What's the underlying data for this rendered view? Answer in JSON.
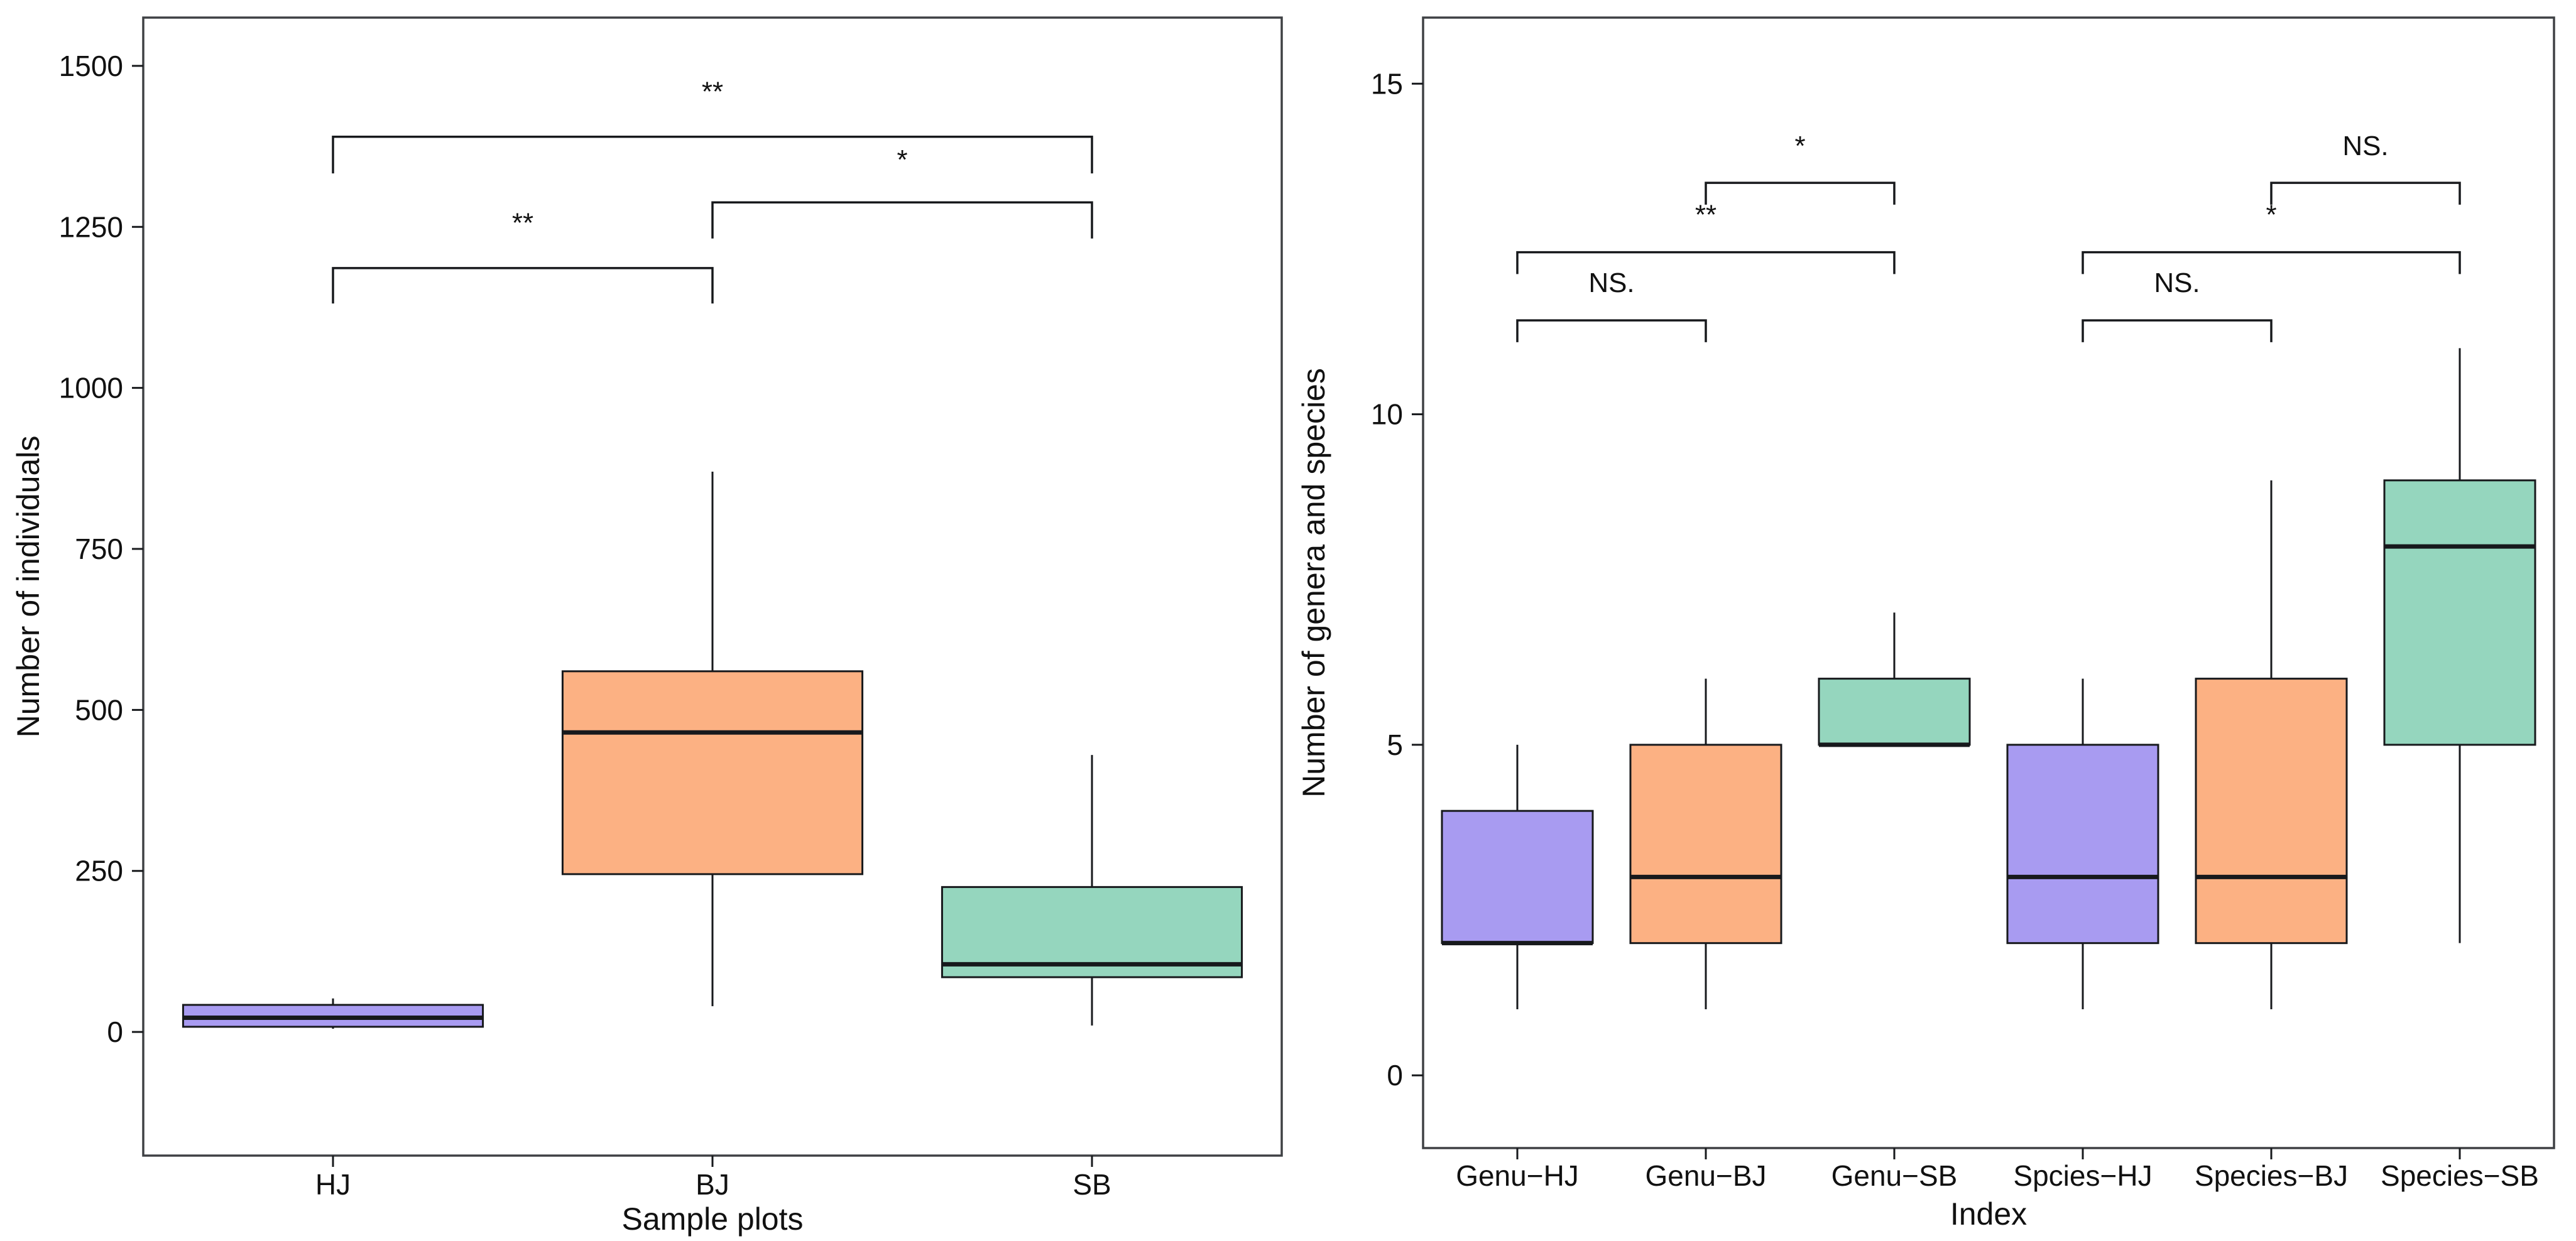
{
  "figure": {
    "background": "#ffffff",
    "line_color": "#17191c",
    "panel_border_color": "#3f4144",
    "palette": {
      "purple": "#A89BF1",
      "orange": "#FCB183",
      "green": "#95D6BE"
    }
  },
  "chart_data": [
    {
      "type": "boxplot",
      "panel": "left",
      "title": "",
      "xlabel": "Sample plots",
      "ylabel": "Number of individuals",
      "yticks": [
        0,
        250,
        500,
        750,
        1000,
        1250,
        1500
      ],
      "ydomain": [
        -192,
        1575
      ],
      "grid": false,
      "categories": [
        "HJ",
        "BJ",
        "SB"
      ],
      "boxes": [
        {
          "label": "HJ",
          "color_key": "purple",
          "whisker_low": 5,
          "q1": 8,
          "median": 22,
          "q3": 42,
          "whisker_high": 52
        },
        {
          "label": "BJ",
          "color_key": "orange",
          "whisker_low": 40,
          "q1": 245,
          "median": 465,
          "q3": 560,
          "whisker_high": 870
        },
        {
          "label": "SB",
          "color_key": "green",
          "whisker_low": 10,
          "q1": 85,
          "median": 105,
          "q3": 225,
          "whisker_high": 430
        }
      ],
      "significance": [
        {
          "from": "HJ",
          "to": "BJ",
          "label": "**",
          "bar_y": 1186,
          "leg": 55,
          "label_y": 1242
        },
        {
          "from": "HJ",
          "to": "SB",
          "label": "**",
          "bar_y": 1390,
          "leg": 57,
          "label_y": 1446
        },
        {
          "from": "BJ",
          "to": "SB",
          "label": "*",
          "bar_y": 1288,
          "leg": 56,
          "label_y": 1340
        }
      ]
    },
    {
      "type": "boxplot",
      "panel": "right",
      "title": "",
      "xlabel": "Index",
      "ylabel": "Number of genera and species",
      "yticks": [
        0,
        5,
        10,
        15
      ],
      "ydomain": [
        -1.1,
        16.0
      ],
      "grid": false,
      "categories": [
        "Genu−HJ",
        "Genu−BJ",
        "Genu−SB",
        "Spcies−HJ",
        "Species−BJ",
        "Species−SB"
      ],
      "boxes": [
        {
          "label": "Genu−HJ",
          "color_key": "purple",
          "whisker_low": 1,
          "q1": 2,
          "median": 2,
          "q3": 4,
          "whisker_high": 5
        },
        {
          "label": "Genu−BJ",
          "color_key": "orange",
          "whisker_low": 1,
          "q1": 2,
          "median": 3,
          "q3": 5,
          "whisker_high": 6
        },
        {
          "label": "Genu−SB",
          "color_key": "green",
          "whisker_low": 5,
          "q1": 5,
          "median": 5,
          "q3": 6,
          "whisker_high": 7
        },
        {
          "label": "Spcies−HJ",
          "color_key": "purple",
          "whisker_low": 1,
          "q1": 2,
          "median": 3,
          "q3": 5,
          "whisker_high": 6
        },
        {
          "label": "Species−BJ",
          "color_key": "orange",
          "whisker_low": 1,
          "q1": 2,
          "median": 3,
          "q3": 6,
          "whisker_high": 9
        },
        {
          "label": "Species−SB",
          "color_key": "green",
          "whisker_low": 2,
          "q1": 5,
          "median": 8,
          "q3": 9,
          "whisker_high": 11
        }
      ],
      "significance": [
        {
          "from": "Genu−HJ",
          "to": "Genu−BJ",
          "label": "NS.",
          "bar_y": 11.42,
          "leg": 0.33,
          "label_y": 11.85
        },
        {
          "from": "Genu−HJ",
          "to": "Genu−SB",
          "label": "**",
          "bar_y": 12.45,
          "leg": 0.33,
          "label_y": 12.88
        },
        {
          "from": "Genu−BJ",
          "to": "Genu−SB",
          "label": "*",
          "bar_y": 13.5,
          "leg": 0.33,
          "label_y": 13.92
        },
        {
          "from": "Spcies−HJ",
          "to": "Species−BJ",
          "label": "NS.",
          "bar_y": 11.42,
          "leg": 0.33,
          "label_y": 11.85
        },
        {
          "from": "Spcies−HJ",
          "to": "Species−SB",
          "label": "*",
          "bar_y": 12.45,
          "leg": 0.33,
          "label_y": 12.88
        },
        {
          "from": "Species−BJ",
          "to": "Species−SB",
          "label": "NS.",
          "bar_y": 13.5,
          "leg": 0.33,
          "label_y": 13.92
        }
      ]
    }
  ]
}
